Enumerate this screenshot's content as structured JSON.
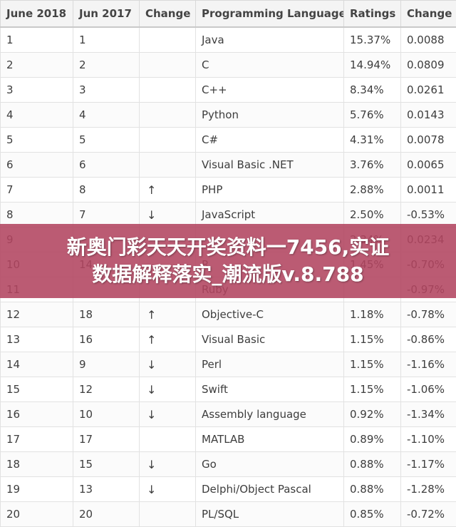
{
  "table": {
    "headers": [
      "June 2018",
      "Jun 2017",
      "Change",
      "Programming Language",
      "Ratings",
      "Change"
    ],
    "rows": [
      {
        "rank_2018": "1",
        "rank_2017": "1",
        "trend": "",
        "language": "Java",
        "rating": "15.37%",
        "change": "0.0088"
      },
      {
        "rank_2018": "2",
        "rank_2017": "2",
        "trend": "",
        "language": "C",
        "rating": "14.94%",
        "change": "0.0809"
      },
      {
        "rank_2018": "3",
        "rank_2017": "3",
        "trend": "",
        "language": "C++",
        "rating": "8.34%",
        "change": "0.0261"
      },
      {
        "rank_2018": "4",
        "rank_2017": "4",
        "trend": "",
        "language": "Python",
        "rating": "5.76%",
        "change": "0.0143"
      },
      {
        "rank_2018": "5",
        "rank_2017": "5",
        "trend": "",
        "language": "C#",
        "rating": "4.31%",
        "change": "0.0078"
      },
      {
        "rank_2018": "6",
        "rank_2017": "6",
        "trend": "",
        "language": "Visual Basic .NET",
        "rating": "3.76%",
        "change": "0.0065"
      },
      {
        "rank_2018": "7",
        "rank_2017": "8",
        "trend": "up",
        "language": "PHP",
        "rating": "2.88%",
        "change": "0.0011"
      },
      {
        "rank_2018": "8",
        "rank_2017": "7",
        "trend": "down",
        "language": "JavaScript",
        "rating": "2.50%",
        "change": "-0.53%"
      },
      {
        "rank_2018": "9",
        "rank_2017": "",
        "trend": "",
        "language": "",
        "rating": "2.34%",
        "change": "0.0234"
      },
      {
        "rank_2018": "10",
        "rank_2017": "14",
        "trend": "",
        "language": "R",
        "rating": "1.45%",
        "change": "-0.70%"
      },
      {
        "rank_2018": "11",
        "rank_2017": "",
        "trend": "",
        "language": "Ruby",
        "rating": "",
        "change": "-0.97%"
      },
      {
        "rank_2018": "12",
        "rank_2017": "18",
        "trend": "up",
        "language": "Objective-C",
        "rating": "1.18%",
        "change": "-0.78%"
      },
      {
        "rank_2018": "13",
        "rank_2017": "16",
        "trend": "up",
        "language": "Visual Basic",
        "rating": "1.15%",
        "change": "-0.86%"
      },
      {
        "rank_2018": "14",
        "rank_2017": "9",
        "trend": "down",
        "language": "Perl",
        "rating": "1.15%",
        "change": "-1.16%"
      },
      {
        "rank_2018": "15",
        "rank_2017": "12",
        "trend": "down",
        "language": "Swift",
        "rating": "1.15%",
        "change": "-1.06%"
      },
      {
        "rank_2018": "16",
        "rank_2017": "10",
        "trend": "down",
        "language": "Assembly language",
        "rating": "0.92%",
        "change": "-1.34%"
      },
      {
        "rank_2018": "17",
        "rank_2017": "17",
        "trend": "",
        "language": "MATLAB",
        "rating": "0.89%",
        "change": "-1.10%"
      },
      {
        "rank_2018": "18",
        "rank_2017": "15",
        "trend": "down",
        "language": "Go",
        "rating": "0.88%",
        "change": "-1.17%"
      },
      {
        "rank_2018": "19",
        "rank_2017": "13",
        "trend": "down",
        "language": "Delphi/Object Pascal",
        "rating": "0.88%",
        "change": "-1.28%"
      },
      {
        "rank_2018": "20",
        "rank_2017": "20",
        "trend": "",
        "language": "PL/SQL",
        "rating": "0.85%",
        "change": "-0.72%"
      }
    ]
  },
  "arrows": {
    "up": "↑",
    "down": "↓"
  },
  "banner": {
    "line1": "新奥门彩天天开奖资料一7456,实证",
    "line2": "数据解释落实_潮流版v.8.788"
  }
}
